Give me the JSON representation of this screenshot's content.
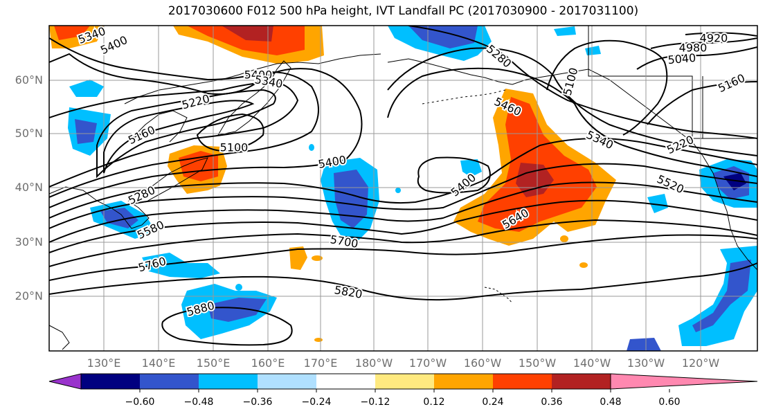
{
  "title": "2017030600 F012 500 hPa height, IVT Landfall PC (2017030900 - 2017031100)",
  "lat_labels": [
    "60°N",
    "50°N",
    "40°N",
    "30°N",
    "20°N"
  ],
  "lon_labels": [
    "130°E",
    "140°E",
    "150°E",
    "160°E",
    "170°E",
    "180°W",
    "170°W",
    "160°W",
    "150°W",
    "140°W",
    "130°W",
    "120°W"
  ],
  "colorbar": {
    "tick_labels": [
      "−0.60",
      "−0.48",
      "−0.36",
      "−0.24",
      "−0.12",
      "0.12",
      "0.24",
      "0.36",
      "0.48",
      "0.60"
    ],
    "colors": [
      "#9933cc",
      "#000080",
      "#3355cc",
      "#00bfff",
      "#b0e0ff",
      "#ffffff",
      "#ffea80",
      "#ffa500",
      "#ff4000",
      "#b22222",
      "#ff88b0"
    ]
  },
  "contour_labels": [
    "5340",
    "5400",
    "5400",
    "5340",
    "5220",
    "5160",
    "5100",
    "5400",
    "5280",
    "5580",
    "5760",
    "5700",
    "5880",
    "5820",
    "5400",
    "5640",
    "5460",
    "5280",
    "5100",
    "5340",
    "5520",
    "5220",
    "5040",
    "4980",
    "4920",
    "5160"
  ]
}
